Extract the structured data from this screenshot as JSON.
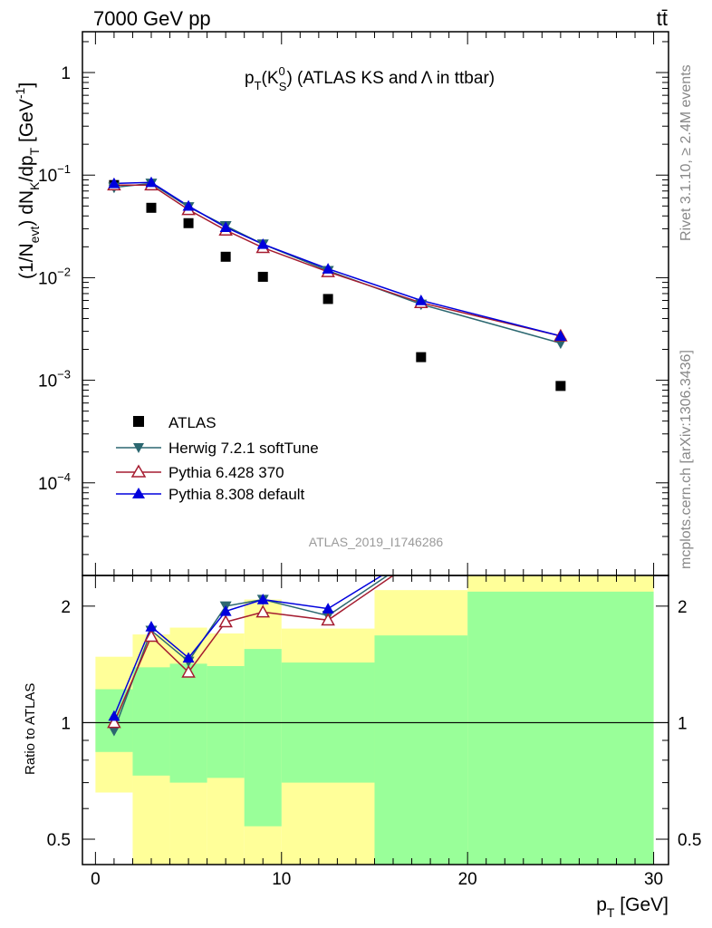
{
  "header": {
    "energy_label": "7000 GeV pp",
    "process_label": "tt̄"
  },
  "side_labels": {
    "rivet": "Rivet 3.1.10, ≥ 2.4M events",
    "mcplots": "mcplots.cern.ch [arXiv:1306.3436]"
  },
  "analysis_id": "ATLAS_2019_I1746286",
  "chart_data": [
    {
      "type": "scatter",
      "title": "p_T(K_S^0) (ATLAS KS and Λ in ttbar)",
      "ylabel": "(1/N_evt) dN_K/dp_T [GeV^-1]",
      "yscale": "log",
      "ylim": [
        1.25e-05,
        2.5
      ],
      "xlim": [
        -0.7,
        30.8
      ],
      "yticks": [
        {
          "value": 1,
          "base": "1",
          "exp": ""
        },
        {
          "value": 0.1,
          "base": "10",
          "exp": "−1"
        },
        {
          "value": 0.01,
          "base": "10",
          "exp": "−2"
        },
        {
          "value": 0.001,
          "base": "10",
          "exp": "−3"
        },
        {
          "value": 0.0001,
          "base": "10",
          "exp": "−4"
        }
      ],
      "legend_position": "bottom-left",
      "series": [
        {
          "name": "ATLAS",
          "marker": "square",
          "color": "#000000",
          "x": [
            1,
            3,
            5,
            7,
            9,
            12.5,
            17.5,
            25
          ],
          "y": [
            0.08,
            0.048,
            0.034,
            0.016,
            0.0102,
            0.0062,
            0.00168,
            0.00088
          ]
        },
        {
          "name": "Herwig 7.2.1 softTune",
          "marker": "triangle-down",
          "color": "#2b6770",
          "x": [
            1,
            3,
            5,
            7,
            9,
            12.5,
            17.5,
            25
          ],
          "y": [
            0.076,
            0.083,
            0.049,
            0.032,
            0.0212,
            0.0117,
            0.0055,
            0.0023
          ]
        },
        {
          "name": "Pythia 6.428 370",
          "marker": "triangle-up-open",
          "color": "#a51c30",
          "x": [
            1,
            3,
            5,
            7,
            9,
            12.5,
            17.5,
            25
          ],
          "y": [
            0.08,
            0.08,
            0.046,
            0.029,
            0.0196,
            0.0114,
            0.0057,
            0.0027
          ]
        },
        {
          "name": "Pythia 8.308 default",
          "marker": "triangle-up",
          "color": "#0000dd",
          "x": [
            1,
            3,
            5,
            7,
            9,
            12.5,
            17.5,
            25
          ],
          "y": [
            0.083,
            0.085,
            0.05,
            0.031,
            0.0212,
            0.0122,
            0.006,
            0.0027
          ]
        }
      ]
    },
    {
      "type": "scatter",
      "ylabel": "Ratio to ATLAS",
      "xlabel": "p_T [GeV]",
      "yscale": "log",
      "ylim": [
        0.43,
        2.4
      ],
      "xlim": [
        -0.7,
        30.8
      ],
      "xticks": [
        0,
        10,
        20,
        30
      ],
      "yticks": [
        {
          "value": 0.5,
          "label": "0.5"
        },
        {
          "value": 1,
          "label": "1"
        },
        {
          "value": 2,
          "label": "2"
        }
      ],
      "bands": [
        {
          "x0": 0,
          "x1": 2,
          "y_lo": 0.66,
          "y_hi": 1.48,
          "g_lo": 0.84,
          "g_hi": 1.22
        },
        {
          "x0": 2,
          "x1": 4,
          "y_lo": 0.43,
          "y_hi": 1.69,
          "g_lo": 0.73,
          "g_hi": 1.39
        },
        {
          "x0": 4,
          "x1": 6,
          "y_lo": 0.43,
          "y_hi": 1.76,
          "g_lo": 0.7,
          "g_hi": 1.42
        },
        {
          "x0": 6,
          "x1": 8,
          "y_lo": 0.43,
          "y_hi": 1.7,
          "g_lo": 0.72,
          "g_hi": 1.4
        },
        {
          "x0": 8,
          "x1": 10,
          "y_lo": 0.43,
          "y_hi": 2.08,
          "g_lo": 0.54,
          "g_hi": 1.55
        },
        {
          "x0": 10,
          "x1": 15,
          "y_lo": 0.43,
          "y_hi": 1.75,
          "g_lo": 0.7,
          "g_hi": 1.43
        },
        {
          "x0": 15,
          "x1": 20,
          "y_lo": 0.43,
          "y_hi": 2.2,
          "g_lo": 0.43,
          "g_hi": 1.68
        },
        {
          "x0": 20,
          "x1": 30,
          "y_lo": 0.43,
          "y_hi": 2.4,
          "g_lo": 0.43,
          "g_hi": 2.18
        }
      ],
      "reference_line": 1,
      "series": [
        {
          "name": "Herwig 7.2.1 softTune",
          "marker": "triangle-down",
          "color": "#2b6770",
          "x": [
            1,
            3,
            5,
            7,
            9,
            12.5,
            15.7
          ],
          "y": [
            0.955,
            1.73,
            1.44,
            2.0,
            2.08,
            1.89,
            2.4
          ]
        },
        {
          "name": "Pythia 6.428 370",
          "marker": "triangle-up-open",
          "color": "#a51c30",
          "x": [
            1,
            3,
            5,
            7,
            9,
            12.5,
            16.0
          ],
          "y": [
            1.0,
            1.67,
            1.35,
            1.82,
            1.93,
            1.84,
            2.4
          ]
        },
        {
          "name": "Pythia 8.308 default",
          "marker": "triangle-up",
          "color": "#0000dd",
          "x": [
            1,
            3,
            5,
            7,
            9,
            12.5,
            15.4
          ],
          "y": [
            1.04,
            1.77,
            1.47,
            1.94,
            2.08,
            1.97,
            2.4
          ]
        }
      ]
    }
  ]
}
